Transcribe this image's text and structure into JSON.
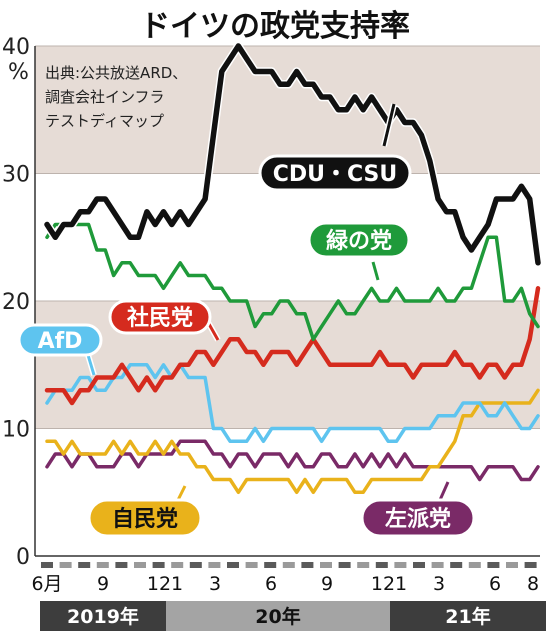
{
  "title": "ドイツの政党支持率",
  "source_lines": [
    "出典:公共放送ARD、",
    "調査会社インフラ",
    "テストディマップ"
  ],
  "unit": "%",
  "colors": {
    "band": "#e6dcd6",
    "CDU・CSU": "#111111",
    "緑の党": "#1f9a3a",
    "社民党": "#d52b1e",
    "AfD": "#5ec4ef",
    "自民党": "#e9b21b",
    "左派党": "#7a2a67"
  },
  "chart_data": {
    "type": "line",
    "title": "ドイツの政党支持率",
    "ylabel": "%",
    "ylim": [
      0,
      40
    ],
    "yticks": [
      "0",
      "10",
      "20",
      "30",
      "40"
    ],
    "grid": true,
    "x_range": [
      "2019-06",
      "2021-08"
    ],
    "month_ticks": [
      "6月",
      "9",
      "12",
      "1",
      "3",
      "6",
      "9",
      "12",
      "1",
      "3",
      "6",
      "8"
    ],
    "years": [
      "2019年",
      "20年",
      "21年"
    ],
    "series": [
      {
        "name": "CDU・CSU",
        "values": [
          26,
          25,
          26,
          26,
          27,
          27,
          28,
          28,
          27,
          26,
          25,
          25,
          27,
          26,
          27,
          26,
          27,
          26,
          27,
          28,
          33,
          38,
          39,
          40,
          39,
          38,
          38,
          38,
          37,
          37,
          38,
          37,
          37,
          36,
          36,
          35,
          35,
          36,
          35,
          36,
          35,
          34,
          35,
          34,
          34,
          33,
          31,
          28,
          27,
          27,
          25,
          24,
          25,
          26,
          28,
          28,
          28,
          29,
          28,
          23
        ]
      },
      {
        "name": "緑の党",
        "values": [
          25,
          26,
          26,
          26,
          26,
          26,
          24,
          24,
          22,
          23,
          23,
          22,
          22,
          22,
          21,
          22,
          23,
          22,
          22,
          22,
          21,
          21,
          20,
          20,
          20,
          18,
          19,
          19,
          20,
          20,
          19,
          19,
          17,
          18,
          19,
          20,
          19,
          19,
          20,
          21,
          20,
          20,
          21,
          20,
          20,
          20,
          20,
          21,
          20,
          20,
          21,
          21,
          23,
          25,
          25,
          20,
          20,
          21,
          19,
          18
        ]
      },
      {
        "name": "社民党",
        "values": [
          13,
          13,
          13,
          12,
          13,
          13,
          14,
          14,
          14,
          15,
          14,
          13,
          14,
          13,
          14,
          14,
          15,
          15,
          16,
          16,
          15,
          16,
          17,
          17,
          16,
          16,
          15,
          16,
          16,
          16,
          15,
          16,
          17,
          16,
          15,
          15,
          15,
          15,
          15,
          15,
          16,
          15,
          15,
          15,
          14,
          15,
          15,
          15,
          15,
          16,
          15,
          15,
          14,
          15,
          15,
          14,
          15,
          15,
          17,
          21
        ]
      },
      {
        "name": "AfD",
        "values": [
          12,
          13,
          13,
          13,
          14,
          14,
          13,
          13,
          14,
          14,
          15,
          15,
          15,
          14,
          15,
          14,
          15,
          14,
          14,
          14,
          10,
          10,
          9,
          9,
          9,
          10,
          9,
          10,
          10,
          10,
          10,
          10,
          10,
          9,
          10,
          10,
          10,
          10,
          10,
          10,
          10,
          9,
          9,
          10,
          10,
          10,
          10,
          11,
          11,
          11,
          12,
          12,
          12,
          11,
          11,
          12,
          11,
          10,
          10,
          11
        ]
      },
      {
        "name": "自民党",
        "values": [
          9,
          9,
          8,
          9,
          8,
          8,
          8,
          8,
          9,
          8,
          9,
          8,
          8,
          9,
          8,
          9,
          8,
          8,
          7,
          7,
          6,
          6,
          6,
          5,
          6,
          6,
          6,
          6,
          6,
          6,
          5,
          6,
          5,
          6,
          6,
          6,
          6,
          5,
          5,
          6,
          6,
          6,
          6,
          6,
          6,
          6,
          7,
          7,
          8,
          9,
          11,
          11,
          12,
          12,
          12,
          12,
          12,
          12,
          12,
          13
        ]
      },
      {
        "name": "左派党",
        "values": [
          7,
          8,
          8,
          7,
          8,
          8,
          7,
          7,
          7,
          8,
          8,
          7,
          8,
          8,
          8,
          8,
          9,
          9,
          9,
          9,
          8,
          8,
          7,
          8,
          8,
          7,
          8,
          8,
          8,
          7,
          8,
          7,
          7,
          8,
          8,
          7,
          7,
          8,
          7,
          8,
          7,
          8,
          7,
          8,
          7,
          7,
          7,
          7,
          7,
          7,
          7,
          7,
          6,
          7,
          7,
          7,
          7,
          6,
          6,
          7
        ]
      }
    ]
  }
}
